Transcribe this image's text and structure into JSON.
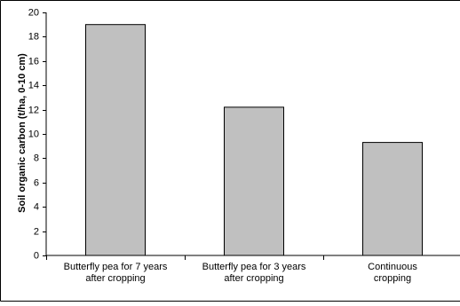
{
  "chart_data": {
    "type": "bar",
    "title": "",
    "xlabel": "",
    "ylabel": "Soil organic carbon (t/ha, 0-10 cm)",
    "ylim": [
      0,
      20
    ],
    "yticks": [
      0,
      2,
      4,
      6,
      8,
      10,
      12,
      14,
      16,
      18,
      20
    ],
    "categories": [
      [
        "Butterfly pea for 7 years",
        "after cropping"
      ],
      [
        "Butterfly pea for 3 years",
        "after cropping"
      ],
      [
        "Continuous",
        "cropping"
      ]
    ],
    "values": [
      19,
      12.2,
      9.3
    ],
    "grid": false,
    "bar_color": "#c0c0c0",
    "bar_edge_color": "#000000"
  }
}
